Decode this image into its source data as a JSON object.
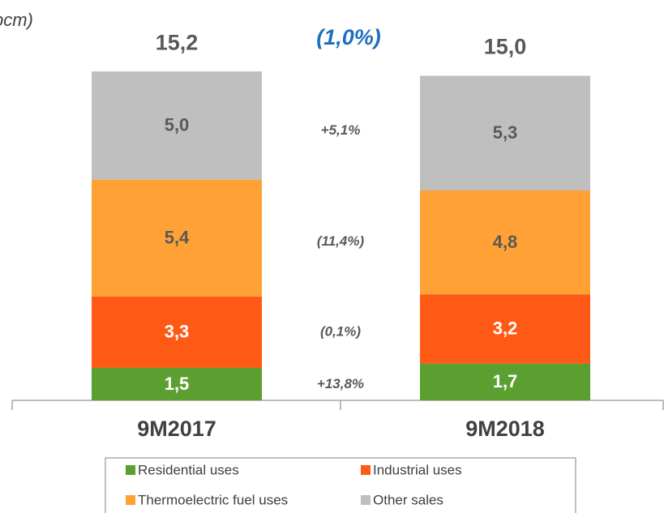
{
  "chart_data": {
    "type": "bar",
    "stacked": true,
    "unit_note": "bcm)",
    "categories": [
      "9M2017",
      "9M2018"
    ],
    "series": [
      {
        "name": "Residential uses",
        "color": "#5b9f30",
        "label_color": "#ffffff",
        "values": [
          1.5,
          1.7
        ],
        "value_labels": [
          "1,5",
          "1,7"
        ],
        "change": "+13,8%"
      },
      {
        "name": "Industrial uses",
        "color": "#ff5a15",
        "label_color": "#ffffff",
        "values": [
          3.3,
          3.2
        ],
        "value_labels": [
          "3,3",
          "3,2"
        ],
        "change": "(0,1%)"
      },
      {
        "name": "Thermoelectric fuel uses",
        "color": "#ffa135",
        "label_color": "#595959",
        "values": [
          5.4,
          4.8
        ],
        "value_labels": [
          "5,4",
          "4,8"
        ],
        "change": "(11,4%)"
      },
      {
        "name": "Other sales",
        "color": "#bfbfbf",
        "label_color": "#595959",
        "values": [
          5.0,
          5.3
        ],
        "value_labels": [
          "5,0",
          "5,3"
        ],
        "change": "+5,1%"
      }
    ],
    "totals": {
      "values": [
        15.2,
        15.0
      ],
      "value_labels": [
        "15,2",
        "15,0"
      ]
    },
    "total_change": "(1,0%)"
  }
}
